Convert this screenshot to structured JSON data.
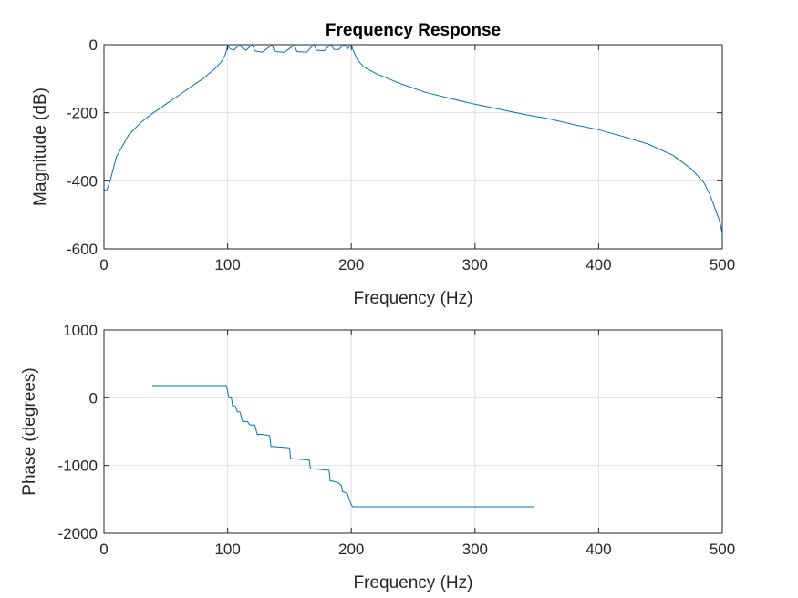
{
  "chart_data": [
    {
      "type": "line",
      "title": "Frequency Response",
      "xlabel": "Frequency (Hz)",
      "ylabel": "Magnitude (dB)",
      "xlim": [
        0,
        500
      ],
      "ylim": [
        -600,
        0
      ],
      "xticks": [
        "0",
        "100",
        "200",
        "300",
        "400",
        "500"
      ],
      "yticks": [
        "-600",
        "-400",
        "-200",
        "0"
      ],
      "grid": true,
      "line_color": "#0072BD",
      "series": [
        {
          "x": [
            0,
            2,
            5,
            10,
            20,
            30,
            40,
            50,
            60,
            70,
            80,
            90,
            95,
            98,
            100,
            102,
            105,
            108,
            110,
            112,
            115,
            118,
            120,
            122,
            128,
            134,
            136,
            138,
            146,
            152,
            154,
            156,
            164,
            168,
            170,
            172,
            178,
            182,
            184,
            186,
            190,
            193,
            195,
            197,
            199,
            200,
            202,
            205,
            210,
            220,
            240,
            260,
            280,
            300,
            320,
            340,
            360,
            380,
            400,
            420,
            440,
            460,
            475,
            485,
            490,
            495,
            498,
            500
          ],
          "y": [
            -425,
            -430,
            -400,
            -330,
            -265,
            -228,
            -200,
            -175,
            -150,
            -125,
            -100,
            -70,
            -50,
            -30,
            -3,
            -12,
            -16,
            -6,
            -2,
            -11,
            -16,
            -6,
            -2,
            -18,
            -22,
            -6,
            -1,
            -20,
            -22,
            -6,
            -1,
            -20,
            -22,
            -6,
            -2,
            -16,
            -18,
            -4,
            -2,
            -14,
            -14,
            -3,
            -2,
            -12,
            -4,
            -2,
            -20,
            -45,
            -65,
            -85,
            -115,
            -140,
            -158,
            -175,
            -190,
            -205,
            -218,
            -235,
            -250,
            -270,
            -292,
            -325,
            -365,
            -405,
            -440,
            -490,
            -520,
            -555
          ]
        }
      ]
    },
    {
      "type": "line",
      "title": "",
      "xlabel": "Frequency (Hz)",
      "ylabel": "Phase (degrees)",
      "xlim": [
        0,
        500
      ],
      "ylim": [
        -2000,
        1000
      ],
      "xticks": [
        "0",
        "100",
        "200",
        "300",
        "400",
        "500"
      ],
      "yticks": [
        "-2000",
        "-1000",
        "0",
        "1000"
      ],
      "grid": true,
      "line_color": "#0072BD",
      "series": [
        {
          "x": [
            39,
            99,
            100,
            101,
            103,
            104,
            106,
            108,
            110,
            112,
            116,
            118,
            122,
            124,
            128,
            134,
            135,
            137,
            144,
            150,
            151,
            153,
            160,
            166,
            167,
            169,
            176,
            182,
            183,
            185,
            190,
            192,
            193,
            194,
            197,
            198,
            199,
            200,
            201,
            348
          ],
          "y": [
            180,
            180,
            100,
            0,
            0,
            -120,
            -120,
            -210,
            -210,
            -350,
            -350,
            -400,
            -400,
            -540,
            -540,
            -560,
            -720,
            -720,
            -730,
            -740,
            -900,
            -900,
            -910,
            -920,
            -1050,
            -1050,
            -1060,
            -1070,
            -1230,
            -1230,
            -1260,
            -1300,
            -1390,
            -1390,
            -1420,
            -1480,
            -1530,
            -1580,
            -1610,
            -1610
          ]
        }
      ]
    }
  ]
}
